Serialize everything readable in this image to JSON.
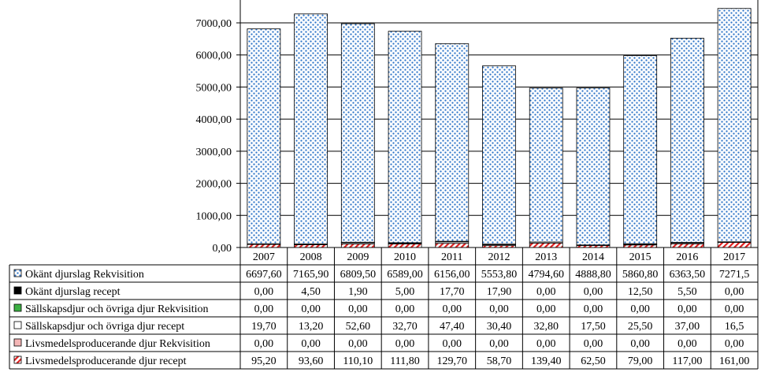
{
  "chart_data": {
    "type": "bar",
    "stacked": true,
    "categories": [
      "2007",
      "2008",
      "2009",
      "2010",
      "2011",
      "2012",
      "2013",
      "2014",
      "2015",
      "2016",
      "2017"
    ],
    "ylim": [
      0,
      7000
    ],
    "yticks": [
      "0,00",
      "1000,00",
      "2000,00",
      "3000,00",
      "4000,00",
      "5000,00",
      "6000,00",
      "7000,00"
    ],
    "grid": true,
    "legend": "data-table-left",
    "series": [
      {
        "name": "Livsmedelsproducerande djur recept",
        "pattern": "hatch-red",
        "color": "#ff0000",
        "values": [
          95.2,
          93.6,
          110.1,
          111.8,
          129.7,
          58.7,
          139.4,
          62.5,
          79.0,
          117.0,
          161.0
        ],
        "labels": [
          "95,20",
          "93,60",
          "110,10",
          "111,80",
          "129,70",
          "58,70",
          "139,40",
          "62,50",
          "79,00",
          "117,00",
          "161,00"
        ]
      },
      {
        "name": "Livsmedelsproducerande djur Rekvisition",
        "pattern": "solid-pink",
        "color": "#f0b0b0",
        "values": [
          0,
          0,
          0,
          0,
          0,
          0,
          0,
          0,
          0,
          0,
          0
        ],
        "labels": [
          "0,00",
          "0,00",
          "0,00",
          "0,00",
          "0,00",
          "0,00",
          "0,00",
          "0,00",
          "0,00",
          "0,00",
          "0,00"
        ]
      },
      {
        "name": "Sällskapsdjur och övriga djur recept",
        "pattern": "solid-white",
        "color": "#ffffff",
        "values": [
          19.7,
          13.2,
          52.6,
          32.7,
          47.4,
          30.4,
          32.8,
          17.5,
          25.5,
          37.0,
          16.5
        ],
        "labels": [
          "19,70",
          "13,20",
          "52,60",
          "32,70",
          "47,40",
          "30,40",
          "32,80",
          "17,50",
          "25,50",
          "37,00",
          "16,5"
        ]
      },
      {
        "name": "Sällskapsdjur och övriga djur Rekvisition",
        "pattern": "solid-green",
        "color": "#3cb043",
        "values": [
          0,
          0,
          0,
          0,
          0,
          0,
          0,
          0,
          0,
          0,
          0
        ],
        "labels": [
          "0,00",
          "0,00",
          "0,00",
          "0,00",
          "0,00",
          "0,00",
          "0,00",
          "0,00",
          "0,00",
          "0,00",
          "0,00"
        ]
      },
      {
        "name": "Okänt djurslag recept",
        "pattern": "solid-black",
        "color": "#000000",
        "values": [
          0,
          4.5,
          1.9,
          5.0,
          17.7,
          17.9,
          0,
          0,
          12.5,
          5.5,
          0
        ],
        "labels": [
          "0,00",
          "4,50",
          "1,90",
          "5,00",
          "17,70",
          "17,90",
          "0,00",
          "0,00",
          "12,50",
          "5,50",
          "0,00"
        ]
      },
      {
        "name": "Okänt djurslag Rekvisition",
        "pattern": "dots-blue",
        "color": "#4f81bd",
        "values": [
          6697.6,
          7165.9,
          6809.5,
          6589.0,
          6156.0,
          5553.8,
          4794.6,
          4888.8,
          5860.8,
          6363.5,
          7271.5
        ],
        "labels": [
          "6697,60",
          "7165,90",
          "6809,50",
          "6589,00",
          "6156,00",
          "5553,80",
          "4794,60",
          "4888,80",
          "5860,80",
          "6363,50",
          "7271,5"
        ]
      }
    ],
    "table_row_order": [
      5,
      4,
      3,
      2,
      1,
      0
    ]
  }
}
